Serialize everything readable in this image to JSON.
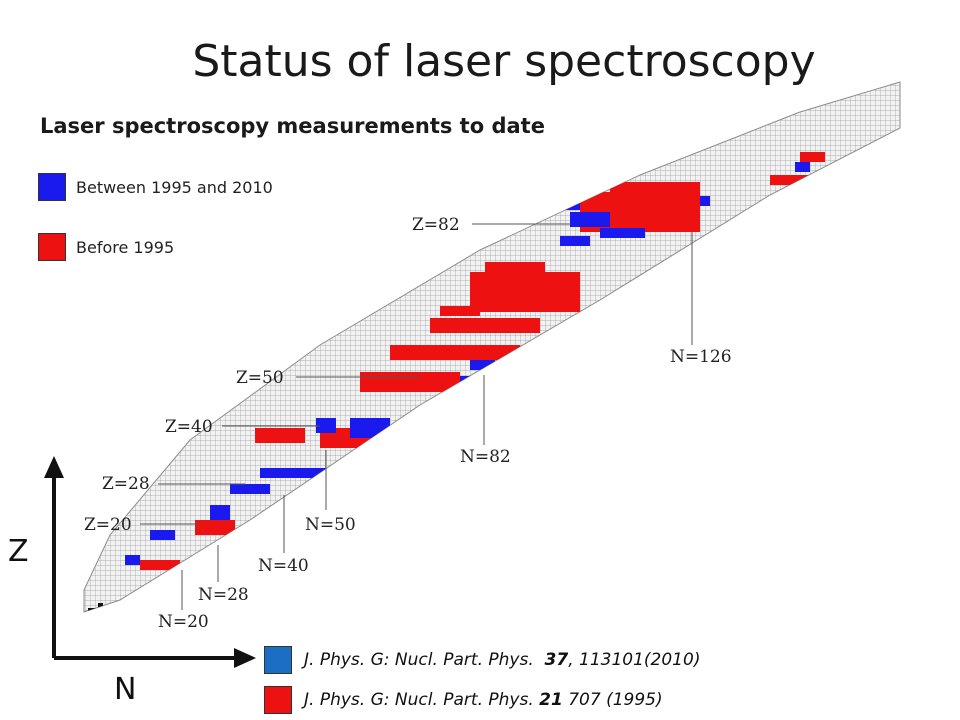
{
  "title": "Status of laser spectroscopy",
  "subtitle": "Laser spectroscopy measurements to date",
  "legend": [
    {
      "label": "Between 1995 and 2010",
      "color": "#1a1aee"
    },
    {
      "label": "Before 1995",
      "color": "#ee1111"
    }
  ],
  "axes": {
    "vertical": "Z",
    "horizontal": "N"
  },
  "annotations": {
    "proton_shells": [
      "Z=82",
      "Z=50",
      "Z=40",
      "Z=28",
      "Z=20"
    ],
    "neutron_shells": [
      "N=126",
      "N=82",
      "N=50",
      "N=40",
      "N=28",
      "N=20"
    ]
  },
  "colors": {
    "stable": "#111111",
    "recent": "#1a1aee",
    "older": "#ee1111",
    "grid": "#9a9a9a"
  },
  "references": [
    {
      "color": "#1a6fc4",
      "journal": "J. Phys. G: Nucl. Part. Phys.",
      "volume": "37",
      "rest": ", 113101(2010)"
    },
    {
      "color": "#ee1111",
      "journal": "J. Phys. G: Nucl. Part. Phys.",
      "volume": "21",
      "rest": " 707 (1995)"
    }
  ]
}
